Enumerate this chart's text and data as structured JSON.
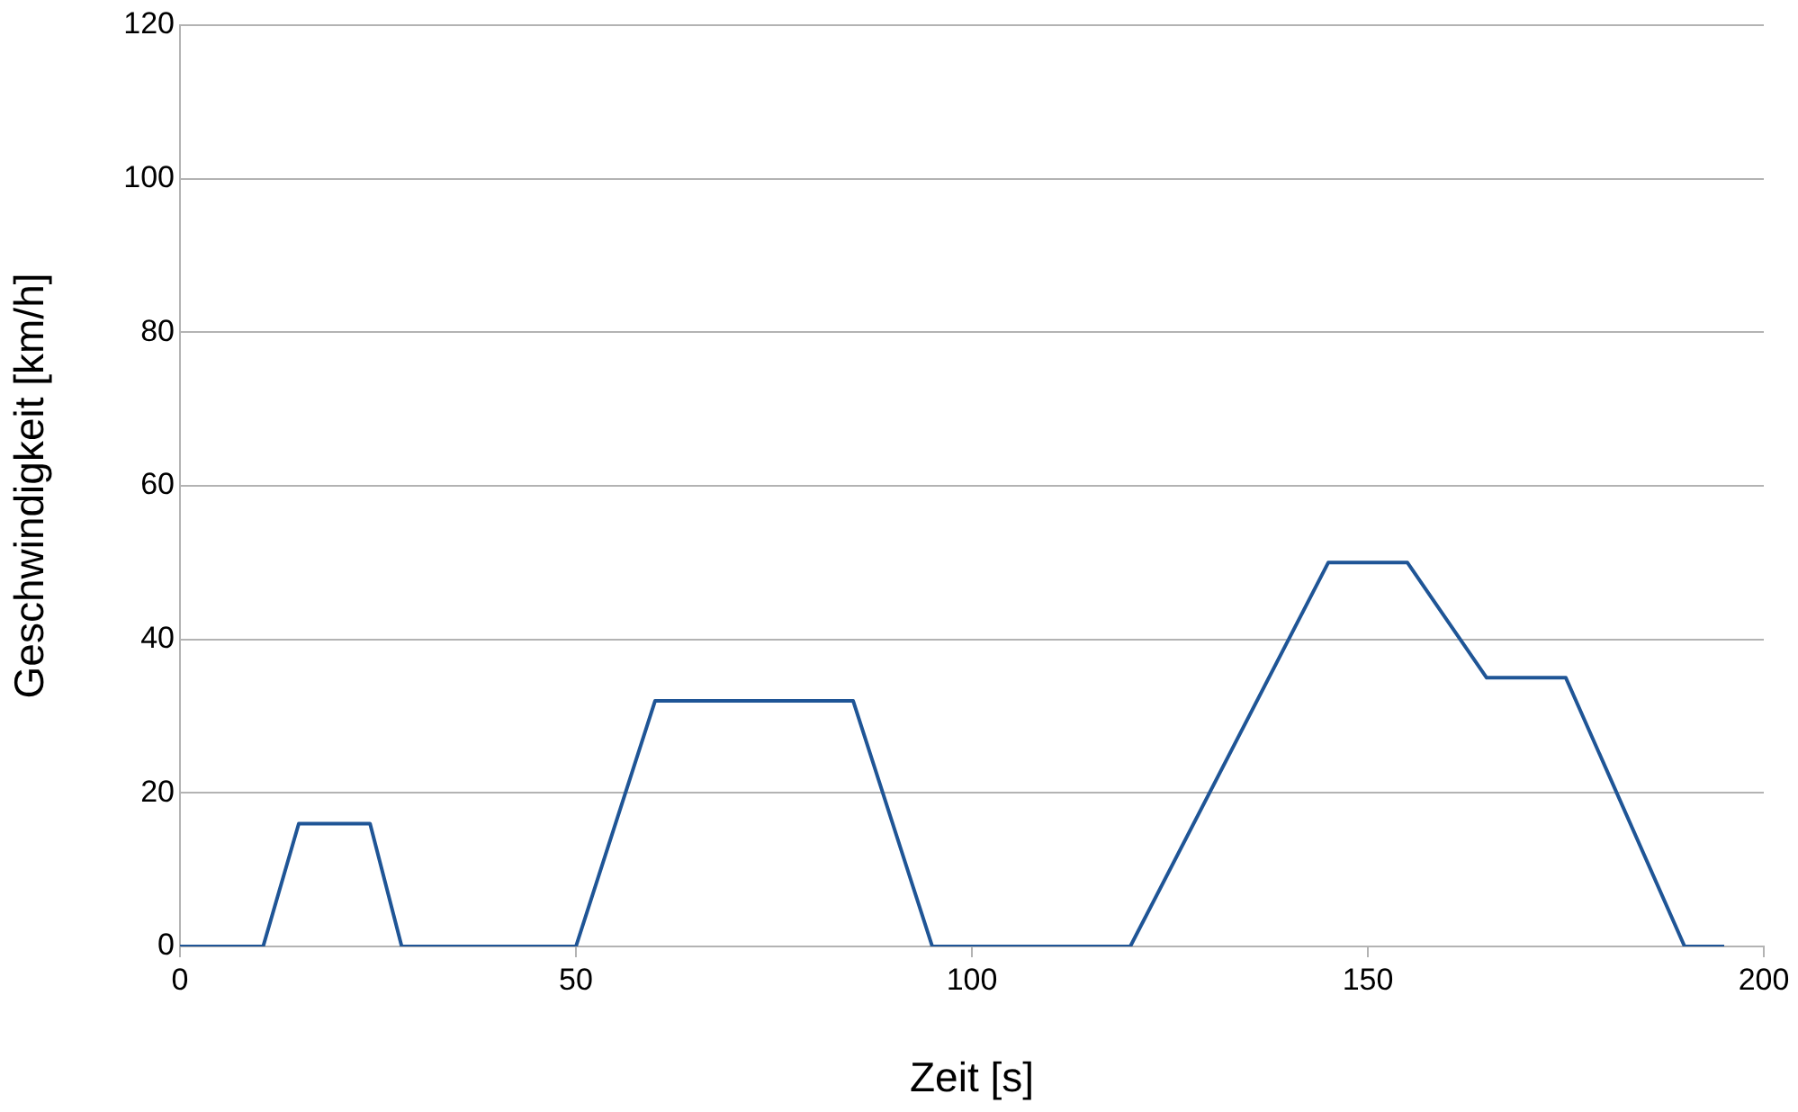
{
  "chart_data": {
    "type": "line",
    "xlabel": "Zeit [s]",
    "ylabel": "Geschwindigkeit [km/h]",
    "x": [
      0,
      10.5,
      15,
      24,
      28,
      50,
      60,
      85,
      95,
      120,
      145,
      155,
      165,
      175,
      190,
      195
    ],
    "series": [
      {
        "color": "#1f5596",
        "values": [
          0,
          0,
          16,
          16,
          0,
          0,
          32,
          32,
          0,
          0,
          50,
          50,
          35,
          35,
          0,
          0
        ]
      }
    ],
    "xlim": [
      0,
      200
    ],
    "xticks": [
      0,
      50,
      100,
      150,
      200
    ],
    "ylim": [
      0,
      120
    ],
    "yticks": [
      0,
      20,
      40,
      60,
      80,
      100,
      120
    ],
    "grid": "y",
    "legend": false,
    "marker": "none",
    "line_style": "solid"
  }
}
